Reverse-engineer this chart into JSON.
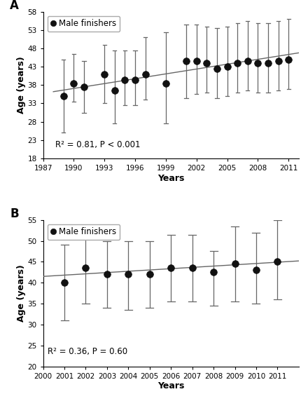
{
  "panel_A": {
    "title": "A",
    "years": [
      1989,
      1990,
      1991,
      1993,
      1994,
      1995,
      1996,
      1997,
      1999,
      2001,
      2002,
      2003,
      2004,
      2005,
      2006,
      2007,
      2008,
      2009,
      2010,
      2011
    ],
    "means": [
      35,
      38.5,
      37.5,
      41,
      36.5,
      39.5,
      39.5,
      41,
      38.5,
      44.5,
      44.5,
      44,
      42.5,
      43,
      44,
      44.5,
      44,
      44,
      44.5,
      45
    ],
    "err_upper": [
      10,
      8,
      7,
      8,
      11,
      8,
      8,
      10,
      14,
      10,
      10,
      10,
      11,
      11,
      11,
      11,
      11,
      11,
      11,
      11
    ],
    "err_lower": [
      10,
      5,
      7,
      8,
      9,
      7,
      7,
      7,
      11,
      10,
      9,
      8,
      8,
      8,
      8,
      8,
      8,
      8,
      8,
      8
    ],
    "trend_x": [
      1988,
      2012
    ],
    "trend_y": [
      36.2,
      46.8
    ],
    "ylabel": "Age (years)",
    "xlabel": "Years",
    "ylim": [
      18,
      58
    ],
    "yticks": [
      18,
      23,
      28,
      33,
      38,
      43,
      48,
      53,
      58
    ],
    "xlim": [
      1987,
      2012
    ],
    "xticks": [
      1987,
      1990,
      1993,
      1996,
      1999,
      2002,
      2005,
      2008,
      2011
    ],
    "ann_x": 1988.2,
    "ann_y": 20.5,
    "legend_label": "Male finishers"
  },
  "panel_B": {
    "title": "B",
    "years": [
      2001,
      2002,
      2003,
      2004,
      2005,
      2006,
      2007,
      2008,
      2009,
      2010,
      2011
    ],
    "means": [
      40,
      43.5,
      42,
      42,
      42,
      43.5,
      43.5,
      42.5,
      44.5,
      43,
      45
    ],
    "err_upper": [
      9,
      8,
      8,
      8,
      8,
      8,
      8,
      5,
      9,
      9,
      10
    ],
    "err_lower": [
      9,
      8.5,
      8,
      8.5,
      8,
      8,
      8,
      8,
      9,
      8,
      9
    ],
    "trend_x": [
      2000,
      2012
    ],
    "trend_y": [
      41.5,
      45.2
    ],
    "ylabel": "Age (years)",
    "xlabel": "Years",
    "ylim": [
      20,
      55
    ],
    "yticks": [
      20,
      25,
      30,
      35,
      40,
      45,
      50,
      55
    ],
    "xlim": [
      2000,
      2012
    ],
    "xticks": [
      2000,
      2001,
      2002,
      2003,
      2004,
      2005,
      2006,
      2007,
      2008,
      2009,
      2010,
      2011
    ],
    "ann_x": 2000.2,
    "ann_y": 22.5,
    "legend_label": "Male finishers"
  },
  "marker_color": "#111111",
  "marker_size": 7,
  "errorbar_color": "#666666",
  "trend_color": "#666666",
  "trend_linewidth": 1.0,
  "errorbar_linewidth": 0.9,
  "ann_fontsize": 8.5,
  "label_fontsize": 9,
  "tick_fontsize": 7.5,
  "panel_label_fontsize": 12,
  "legend_fontsize": 8.5
}
